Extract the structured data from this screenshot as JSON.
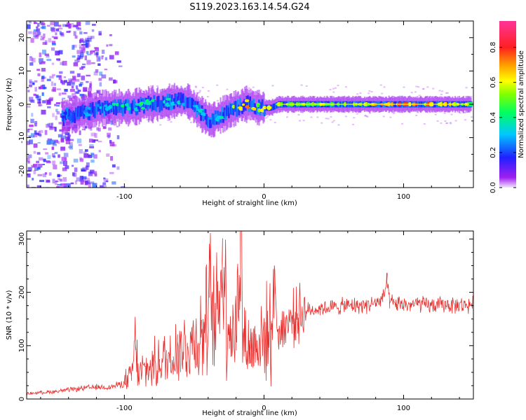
{
  "title": "S119.2023.163.14.54.G24",
  "chart_data": [
    {
      "type": "heatmap",
      "xlabel": "Height of straight line (km)",
      "ylabel": "Frequency (Hz)",
      "xlim": [
        -170,
        150
      ],
      "ylim": [
        -25,
        25
      ],
      "x_ticks": [
        -100,
        0,
        100
      ],
      "y_ticks": [
        -20,
        -10,
        0,
        10,
        20
      ],
      "grid": false,
      "colorbar": {
        "label": "Normalized spectral amplitude",
        "range": [
          0,
          0.95
        ],
        "ticks": [
          0.0,
          0.2,
          0.4,
          0.6,
          0.8
        ],
        "colormap": "rainbow (purple-blue-cyan-green-yellow-orange-red-pink)"
      },
      "ridge": {
        "description": "Dominant spectral ridge: frequency vs height",
        "x": [
          -145,
          -135,
          -125,
          -115,
          -105,
          -95,
          -85,
          -75,
          -65,
          -55,
          -45,
          -38,
          -30,
          -25,
          -20,
          -15,
          -10,
          -5,
          0,
          5,
          10,
          20,
          30,
          50,
          70,
          90,
          110,
          130,
          148
        ],
        "y": [
          -4,
          -3,
          -2,
          -1,
          -1,
          -1,
          0,
          0,
          1,
          1,
          -3,
          -5,
          -3,
          -2,
          -1,
          0,
          0,
          -1,
          -1,
          -1,
          0,
          0,
          0,
          0,
          0,
          0,
          0,
          0,
          0
        ],
        "amplitude": [
          0.2,
          0.3,
          0.3,
          0.35,
          0.4,
          0.4,
          0.45,
          0.45,
          0.4,
          0.4,
          0.35,
          0.35,
          0.35,
          0.5,
          0.6,
          0.75,
          0.85,
          0.55,
          0.6,
          0.6,
          0.6,
          0.55,
          0.55,
          0.6,
          0.6,
          0.8,
          0.8,
          0.7,
          0.6
        ]
      },
      "noise_region": {
        "x_range": [
          -170,
          -100
        ],
        "y_range": [
          -25,
          25
        ],
        "amplitude": [
          0.05,
          0.25
        ]
      }
    },
    {
      "type": "line",
      "xlabel": "Height of straight line (km)",
      "ylabel": "SNR (10 * v/v)",
      "xlim": [
        -170,
        150
      ],
      "ylim": [
        0,
        315
      ],
      "x_ticks": [
        -100,
        0,
        100
      ],
      "y_ticks": [
        0,
        100,
        200,
        300
      ],
      "grid": false,
      "series": [
        {
          "color": "#e8312f",
          "x": [
            -170,
            -160,
            -150,
            -140,
            -130,
            -120,
            -110,
            -100,
            -95,
            -92,
            -90,
            -85,
            -80,
            -75,
            -70,
            -65,
            -62,
            -60,
            -55,
            -50,
            -45,
            -40,
            -39,
            -35,
            -30,
            -25,
            -20,
            -17,
            -15,
            -10,
            -5,
            0,
            5,
            8,
            10,
            15,
            20,
            25,
            30,
            40,
            50,
            60,
            70,
            80,
            85,
            88,
            90,
            95,
            100,
            110,
            120,
            130,
            140,
            150
          ],
          "y": [
            10,
            12,
            14,
            17,
            20,
            22,
            22,
            30,
            40,
            102,
            45,
            55,
            60,
            70,
            75,
            80,
            110,
            90,
            100,
            110,
            120,
            150,
            190,
            130,
            260,
            140,
            120,
            315,
            120,
            90,
            110,
            115,
            130,
            215,
            120,
            140,
            150,
            160,
            165,
            170,
            172,
            175,
            175,
            180,
            185,
            220,
            180,
            178,
            176,
            178,
            175,
            177,
            175,
            178
          ]
        }
      ]
    }
  ]
}
